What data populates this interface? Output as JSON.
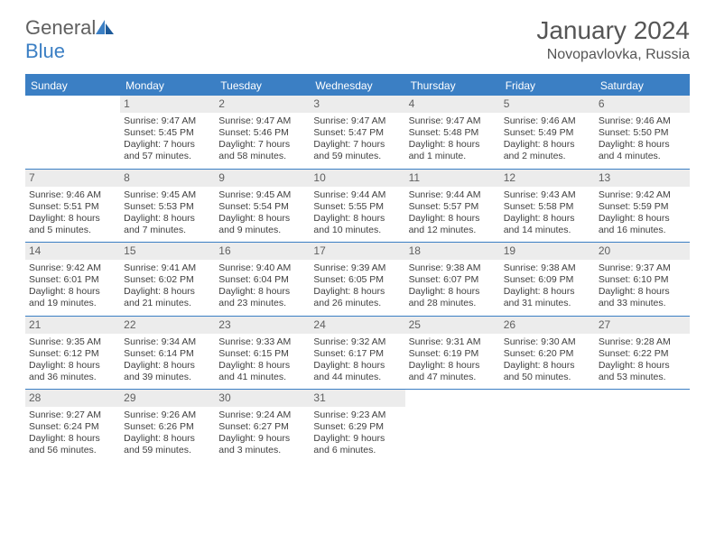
{
  "logo": {
    "word1": "General",
    "word2": "Blue"
  },
  "title": "January 2024",
  "subtitle": "Novopavlovka, Russia",
  "colors": {
    "accent": "#3b7fc4",
    "daynum_bg": "#ececec",
    "text": "#404040",
    "header_text": "#555555"
  },
  "dayHeaders": [
    "Sunday",
    "Monday",
    "Tuesday",
    "Wednesday",
    "Thursday",
    "Friday",
    "Saturday"
  ],
  "weeks": [
    [
      {
        "n": "",
        "lines": []
      },
      {
        "n": "1",
        "lines": [
          "Sunrise: 9:47 AM",
          "Sunset: 5:45 PM",
          "Daylight: 7 hours",
          "and 57 minutes."
        ]
      },
      {
        "n": "2",
        "lines": [
          "Sunrise: 9:47 AM",
          "Sunset: 5:46 PM",
          "Daylight: 7 hours",
          "and 58 minutes."
        ]
      },
      {
        "n": "3",
        "lines": [
          "Sunrise: 9:47 AM",
          "Sunset: 5:47 PM",
          "Daylight: 7 hours",
          "and 59 minutes."
        ]
      },
      {
        "n": "4",
        "lines": [
          "Sunrise: 9:47 AM",
          "Sunset: 5:48 PM",
          "Daylight: 8 hours",
          "and 1 minute."
        ]
      },
      {
        "n": "5",
        "lines": [
          "Sunrise: 9:46 AM",
          "Sunset: 5:49 PM",
          "Daylight: 8 hours",
          "and 2 minutes."
        ]
      },
      {
        "n": "6",
        "lines": [
          "Sunrise: 9:46 AM",
          "Sunset: 5:50 PM",
          "Daylight: 8 hours",
          "and 4 minutes."
        ]
      }
    ],
    [
      {
        "n": "7",
        "lines": [
          "Sunrise: 9:46 AM",
          "Sunset: 5:51 PM",
          "Daylight: 8 hours",
          "and 5 minutes."
        ]
      },
      {
        "n": "8",
        "lines": [
          "Sunrise: 9:45 AM",
          "Sunset: 5:53 PM",
          "Daylight: 8 hours",
          "and 7 minutes."
        ]
      },
      {
        "n": "9",
        "lines": [
          "Sunrise: 9:45 AM",
          "Sunset: 5:54 PM",
          "Daylight: 8 hours",
          "and 9 minutes."
        ]
      },
      {
        "n": "10",
        "lines": [
          "Sunrise: 9:44 AM",
          "Sunset: 5:55 PM",
          "Daylight: 8 hours",
          "and 10 minutes."
        ]
      },
      {
        "n": "11",
        "lines": [
          "Sunrise: 9:44 AM",
          "Sunset: 5:57 PM",
          "Daylight: 8 hours",
          "and 12 minutes."
        ]
      },
      {
        "n": "12",
        "lines": [
          "Sunrise: 9:43 AM",
          "Sunset: 5:58 PM",
          "Daylight: 8 hours",
          "and 14 minutes."
        ]
      },
      {
        "n": "13",
        "lines": [
          "Sunrise: 9:42 AM",
          "Sunset: 5:59 PM",
          "Daylight: 8 hours",
          "and 16 minutes."
        ]
      }
    ],
    [
      {
        "n": "14",
        "lines": [
          "Sunrise: 9:42 AM",
          "Sunset: 6:01 PM",
          "Daylight: 8 hours",
          "and 19 minutes."
        ]
      },
      {
        "n": "15",
        "lines": [
          "Sunrise: 9:41 AM",
          "Sunset: 6:02 PM",
          "Daylight: 8 hours",
          "and 21 minutes."
        ]
      },
      {
        "n": "16",
        "lines": [
          "Sunrise: 9:40 AM",
          "Sunset: 6:04 PM",
          "Daylight: 8 hours",
          "and 23 minutes."
        ]
      },
      {
        "n": "17",
        "lines": [
          "Sunrise: 9:39 AM",
          "Sunset: 6:05 PM",
          "Daylight: 8 hours",
          "and 26 minutes."
        ]
      },
      {
        "n": "18",
        "lines": [
          "Sunrise: 9:38 AM",
          "Sunset: 6:07 PM",
          "Daylight: 8 hours",
          "and 28 minutes."
        ]
      },
      {
        "n": "19",
        "lines": [
          "Sunrise: 9:38 AM",
          "Sunset: 6:09 PM",
          "Daylight: 8 hours",
          "and 31 minutes."
        ]
      },
      {
        "n": "20",
        "lines": [
          "Sunrise: 9:37 AM",
          "Sunset: 6:10 PM",
          "Daylight: 8 hours",
          "and 33 minutes."
        ]
      }
    ],
    [
      {
        "n": "21",
        "lines": [
          "Sunrise: 9:35 AM",
          "Sunset: 6:12 PM",
          "Daylight: 8 hours",
          "and 36 minutes."
        ]
      },
      {
        "n": "22",
        "lines": [
          "Sunrise: 9:34 AM",
          "Sunset: 6:14 PM",
          "Daylight: 8 hours",
          "and 39 minutes."
        ]
      },
      {
        "n": "23",
        "lines": [
          "Sunrise: 9:33 AM",
          "Sunset: 6:15 PM",
          "Daylight: 8 hours",
          "and 41 minutes."
        ]
      },
      {
        "n": "24",
        "lines": [
          "Sunrise: 9:32 AM",
          "Sunset: 6:17 PM",
          "Daylight: 8 hours",
          "and 44 minutes."
        ]
      },
      {
        "n": "25",
        "lines": [
          "Sunrise: 9:31 AM",
          "Sunset: 6:19 PM",
          "Daylight: 8 hours",
          "and 47 minutes."
        ]
      },
      {
        "n": "26",
        "lines": [
          "Sunrise: 9:30 AM",
          "Sunset: 6:20 PM",
          "Daylight: 8 hours",
          "and 50 minutes."
        ]
      },
      {
        "n": "27",
        "lines": [
          "Sunrise: 9:28 AM",
          "Sunset: 6:22 PM",
          "Daylight: 8 hours",
          "and 53 minutes."
        ]
      }
    ],
    [
      {
        "n": "28",
        "lines": [
          "Sunrise: 9:27 AM",
          "Sunset: 6:24 PM",
          "Daylight: 8 hours",
          "and 56 minutes."
        ]
      },
      {
        "n": "29",
        "lines": [
          "Sunrise: 9:26 AM",
          "Sunset: 6:26 PM",
          "Daylight: 8 hours",
          "and 59 minutes."
        ]
      },
      {
        "n": "30",
        "lines": [
          "Sunrise: 9:24 AM",
          "Sunset: 6:27 PM",
          "Daylight: 9 hours",
          "and 3 minutes."
        ]
      },
      {
        "n": "31",
        "lines": [
          "Sunrise: 9:23 AM",
          "Sunset: 6:29 PM",
          "Daylight: 9 hours",
          "and 6 minutes."
        ]
      },
      {
        "n": "",
        "lines": []
      },
      {
        "n": "",
        "lines": []
      },
      {
        "n": "",
        "lines": []
      }
    ]
  ]
}
